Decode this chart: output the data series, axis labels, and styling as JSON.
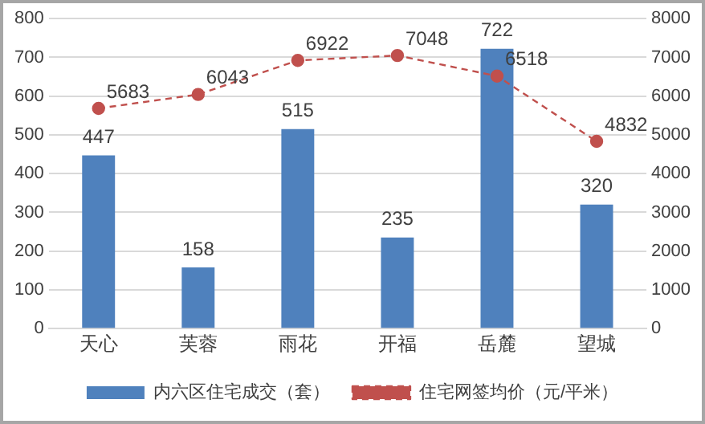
{
  "chart_data": {
    "type": "bar",
    "categories": [
      "天心",
      "芙蓉",
      "雨花",
      "开福",
      "岳麓",
      "望城"
    ],
    "series": [
      {
        "name": "内六区住宅成交（套）",
        "color": "#4f81bd",
        "values": [
          447,
          158,
          515,
          235,
          722,
          320
        ]
      },
      {
        "name": "住宅网签均价（元/平米）",
        "type": "line",
        "axis": "y2",
        "color": "#c0504d",
        "line_style": "dashed",
        "marker": "circle",
        "values": [
          5683,
          6043,
          6922,
          7048,
          6518,
          4832
        ]
      }
    ],
    "ylim": [
      0,
      800
    ],
    "yticks": [
      0,
      100,
      200,
      300,
      400,
      500,
      600,
      700,
      800
    ],
    "y2lim": [
      0,
      8000
    ],
    "y2ticks": [
      0,
      1000,
      2000,
      3000,
      4000,
      5000,
      6000,
      7000,
      8000
    ],
    "grid": "y",
    "legend": "bottom",
    "data_labels": true
  }
}
